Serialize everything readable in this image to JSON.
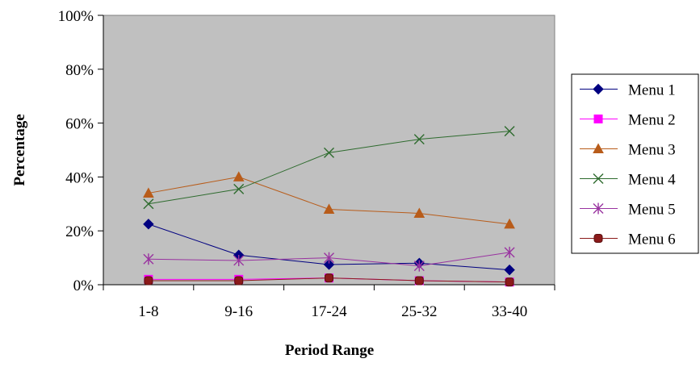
{
  "chart_data": {
    "type": "line",
    "title": "",
    "xlabel": "Period Range",
    "ylabel": "Percentage",
    "categories": [
      "1-8",
      "9-16",
      "17-24",
      "25-32",
      "33-40"
    ],
    "ylim": [
      0,
      100
    ],
    "yticks": [
      "0%",
      "20%",
      "40%",
      "60%",
      "80%",
      "100%"
    ],
    "grid": false,
    "plot_background": "#c0c0c0",
    "legend_position": "right",
    "series": [
      {
        "name": "Menu 1",
        "values": [
          22.5,
          11,
          7.5,
          8,
          5.5
        ],
        "color": "#000080",
        "marker": "diamond"
      },
      {
        "name": "Menu 2",
        "values": [
          2,
          2,
          2.5,
          1.5,
          1
        ],
        "color": "#ff00ff",
        "marker": "square"
      },
      {
        "name": "Menu 3",
        "values": [
          34,
          40,
          28,
          26.5,
          22.5
        ],
        "color": "#b85c1a",
        "marker": "triangle"
      },
      {
        "name": "Menu 4",
        "values": [
          30,
          35.5,
          49,
          54,
          57
        ],
        "color": "#2e6b2e",
        "marker": "x"
      },
      {
        "name": "Menu 5",
        "values": [
          9.5,
          9,
          10,
          7,
          12
        ],
        "color": "#9933a0",
        "marker": "star"
      },
      {
        "name": "Menu 6",
        "values": [
          1.5,
          1.5,
          2.5,
          1.5,
          1
        ],
        "color": "#8b1a1a",
        "marker": "circle"
      }
    ]
  }
}
